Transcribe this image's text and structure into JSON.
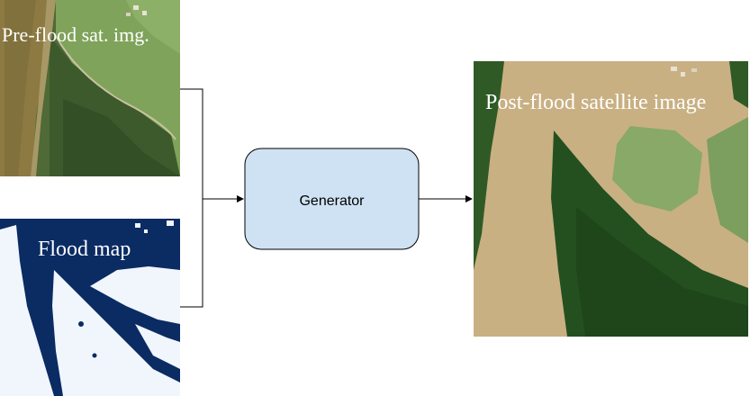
{
  "inputs": {
    "pre_flood_label": "Pre-flood sat. img.",
    "flood_map_label": "Flood map"
  },
  "generator": {
    "label": "Generator"
  },
  "output": {
    "post_flood_label": "Post-flood satellite image"
  },
  "colors": {
    "generator_fill": "#cfe2f3",
    "generator_stroke": "#000000",
    "flood_map_water": "#0b2b63",
    "flood_map_land": "#f0f6fc",
    "muddy_water": "#c9b083",
    "river": "#8c7a42",
    "field_green": "#7fa35a",
    "forest_green": "#2f5a26"
  }
}
